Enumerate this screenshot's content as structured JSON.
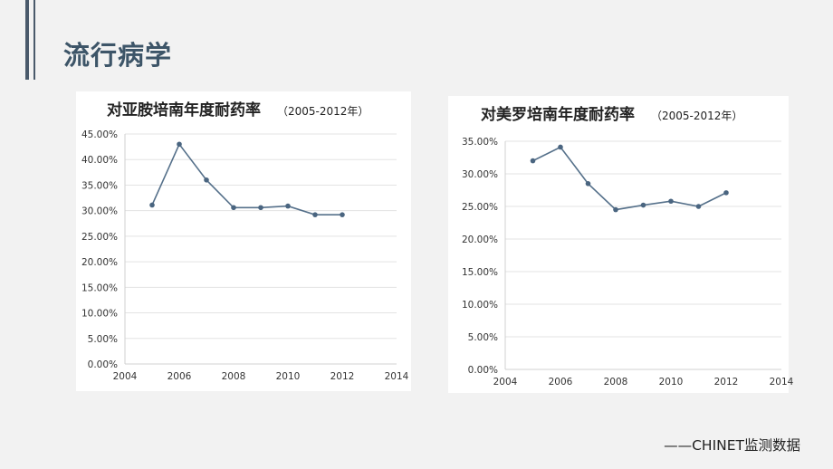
{
  "slide": {
    "title": "流行病学",
    "footer": "——CHINET监测数据"
  },
  "chart_data": [
    {
      "type": "line",
      "title": "对亚胺培南年度耐药率",
      "subtitle": "（2005-2012年）",
      "xlabel": "",
      "ylabel": "",
      "xlim": [
        2004,
        2014
      ],
      "ylim": [
        0,
        0.45
      ],
      "x_ticks": [
        "2004",
        "2006",
        "2008",
        "2010",
        "2012",
        "2014"
      ],
      "y_ticks": [
        "0.00%",
        "5.00%",
        "10.00%",
        "15.00%",
        "20.00%",
        "25.00%",
        "30.00%",
        "35.00%",
        "40.00%",
        "45.00%"
      ],
      "grid": true,
      "series": [
        {
          "x": [
            2005,
            2006,
            2007,
            2008,
            2009,
            2010,
            2011,
            2012
          ],
          "values": [
            0.311,
            0.43,
            0.36,
            0.306,
            0.306,
            0.309,
            0.292,
            0.292
          ]
        }
      ]
    },
    {
      "type": "line",
      "title": "对美罗培南年度耐药率",
      "subtitle": "（2005-2012年）",
      "xlabel": "",
      "ylabel": "",
      "xlim": [
        2004,
        2014
      ],
      "ylim": [
        0,
        0.35
      ],
      "x_ticks": [
        "2004",
        "2006",
        "2008",
        "2010",
        "2012",
        "2014"
      ],
      "y_ticks": [
        "0.00%",
        "5.00%",
        "10.00%",
        "15.00%",
        "20.00%",
        "25.00%",
        "30.00%",
        "35.00%"
      ],
      "grid": true,
      "series": [
        {
          "x": [
            2005,
            2006,
            2007,
            2008,
            2009,
            2010,
            2011,
            2012
          ],
          "values": [
            0.32,
            0.341,
            0.285,
            0.245,
            0.252,
            0.258,
            0.25,
            0.271
          ]
        }
      ]
    }
  ]
}
